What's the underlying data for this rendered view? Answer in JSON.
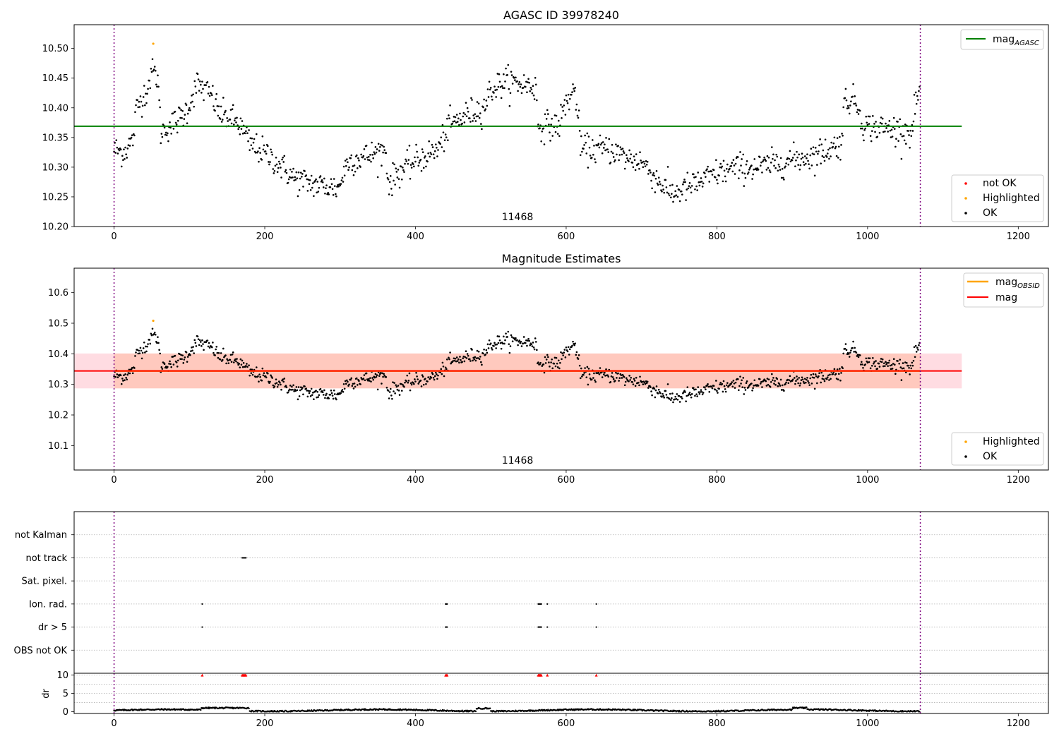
{
  "colors": {
    "ok": "#000000",
    "highlighted": "#ffa500",
    "not_ok": "#ff0000",
    "mag_agasc_line": "#008000",
    "mag_obsid_line": "#ffa500",
    "mag_line": "#ff0000",
    "mag_band_outer": "#ffc0cb",
    "mag_band_inner": "#ffa57a",
    "obs_boundary": "#800080",
    "grid": "#b0b0b0"
  },
  "chart_data": [
    {
      "id": "agasc",
      "type": "scatter",
      "title": "AGASC ID 39978240",
      "xlim": [
        -53,
        1240
      ],
      "ylim": [
        10.2,
        10.54
      ],
      "xticks": [
        0,
        200,
        400,
        600,
        800,
        1000,
        1200
      ],
      "yticks": [
        10.2,
        10.25,
        10.3,
        10.35,
        10.4,
        10.45,
        10.5
      ],
      "ytick_labels": [
        "10.20",
        "10.25",
        "10.30",
        "10.35",
        "10.40",
        "10.45",
        "10.50"
      ],
      "obs_boundaries": [
        0,
        1070
      ],
      "obsid_label": {
        "text": "11468",
        "x": 535
      },
      "hline": {
        "name": "mag_AGASC",
        "y": 10.369,
        "x_range": [
          -53,
          1125
        ]
      },
      "highlighted_points": [
        {
          "x": 52,
          "y": 10.508
        }
      ],
      "n_points": 1070,
      "legend_top": {
        "placement": "upper right",
        "entries": [
          {
            "label": "mag",
            "subscript": "AGASC",
            "style": "line",
            "color": "#008000"
          }
        ]
      },
      "legend_bottom": {
        "placement": "lower right",
        "entries": [
          {
            "label": "not OK",
            "style": "dot",
            "color": "#ff0000"
          },
          {
            "label": "Highlighted",
            "style": "dot",
            "color": "#ffa500"
          },
          {
            "label": "OK",
            "style": "dot",
            "color": "#000000"
          }
        ]
      }
    },
    {
      "id": "mag_estimates",
      "type": "scatter",
      "title": "Magnitude Estimates",
      "xlim": [
        -53,
        1240
      ],
      "ylim": [
        10.02,
        10.68
      ],
      "xticks": [
        0,
        200,
        400,
        600,
        800,
        1000,
        1200
      ],
      "yticks": [
        10.1,
        10.2,
        10.3,
        10.4,
        10.5,
        10.6
      ],
      "ytick_labels": [
        "10.1",
        "10.2",
        "10.3",
        "10.4",
        "10.5",
        "10.6"
      ],
      "obs_boundaries": [
        0,
        1070
      ],
      "obsid_label": {
        "text": "11468",
        "x": 535
      },
      "mag": {
        "y": 10.344,
        "band": [
          10.287,
          10.401
        ],
        "x_range": [
          -53,
          1125
        ]
      },
      "mag_obsid": {
        "y": 10.344,
        "band": [
          10.287,
          10.401
        ],
        "x_range": [
          0,
          1070
        ]
      },
      "highlighted_points": [
        {
          "x": 52,
          "y": 10.508
        }
      ],
      "legend_top": {
        "placement": "upper right",
        "entries": [
          {
            "label": "mag",
            "subscript": "OBSID",
            "style": "line",
            "color": "#ffa500"
          },
          {
            "label": "mag",
            "style": "line",
            "color": "#ff0000"
          }
        ]
      },
      "legend_bottom": {
        "placement": "lower right",
        "entries": [
          {
            "label": "Highlighted",
            "style": "dot",
            "color": "#ffa500"
          },
          {
            "label": "OK",
            "style": "dot",
            "color": "#000000"
          }
        ]
      }
    },
    {
      "id": "flags",
      "type": "scatter",
      "xlim": [
        -53,
        1240
      ],
      "categories": [
        "not Kalman",
        "not track",
        "Sat. pixel.",
        "Ion. rad.",
        "dr > 5",
        "OBS not OK"
      ],
      "obs_boundaries": [
        0,
        1070
      ],
      "flag_points": {
        "not track": [
          170,
          171,
          172,
          173,
          174,
          175
        ],
        "Ion. rad.": [
          117,
          440,
          441,
          442,
          563,
          564,
          565,
          566,
          567,
          575,
          640
        ],
        "dr > 5": [
          117,
          440,
          441,
          442,
          563,
          564,
          565,
          566,
          567,
          575,
          640
        ]
      }
    },
    {
      "id": "dr",
      "type": "scatter",
      "ylabel": "dr",
      "xlim": [
        -53,
        1240
      ],
      "ylim": [
        -0.5,
        10.5
      ],
      "xticks": [
        0,
        200,
        400,
        600,
        800,
        1000,
        1200
      ],
      "yticks": [
        0,
        5,
        10
      ],
      "ytick_labels": [
        "0",
        "5",
        "10"
      ],
      "obs_boundaries": [
        0,
        1070
      ],
      "not_ok_points": [
        117,
        170,
        171,
        172,
        173,
        174,
        175,
        440,
        441,
        442,
        563,
        564,
        565,
        566,
        567,
        575,
        640
      ],
      "clip_value": 10
    }
  ]
}
